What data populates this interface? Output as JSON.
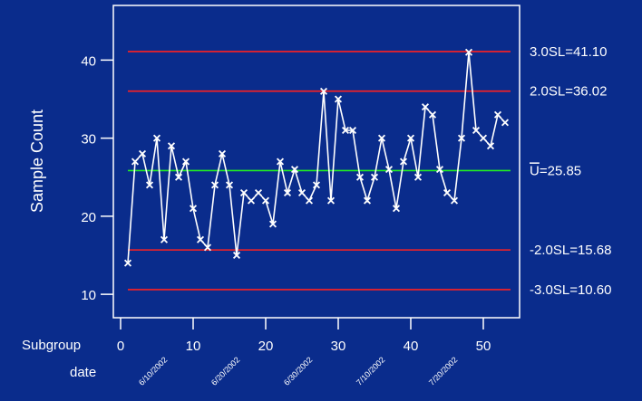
{
  "chart_data": {
    "type": "line",
    "title": "",
    "ylabel": "Sample Count",
    "xlabel": "Subgroup",
    "date_row_label": "date",
    "xlim": [
      -1,
      55
    ],
    "ylim": [
      7,
      47
    ],
    "x_ticks": [
      0,
      10,
      20,
      30,
      40,
      50
    ],
    "y_ticks": [
      10,
      20,
      30,
      40
    ],
    "date_ticks": [
      {
        "x": 6,
        "label": "6/10/2002"
      },
      {
        "x": 16,
        "label": "6/20/2002"
      },
      {
        "x": 26,
        "label": "6/30/2002"
      },
      {
        "x": 36,
        "label": "7/10/2002"
      },
      {
        "x": 46,
        "label": "7/20/2002"
      }
    ],
    "series": [
      {
        "x": [
          1,
          2,
          3,
          4,
          5,
          6,
          7,
          8,
          9,
          10,
          11,
          12,
          13,
          14,
          15,
          16,
          17,
          18,
          19,
          20,
          21,
          22,
          23,
          24,
          25,
          26,
          27,
          28,
          29,
          30,
          31,
          32,
          33,
          34,
          35,
          36,
          37,
          38,
          39,
          40,
          41,
          42,
          43,
          44,
          45,
          46,
          47,
          48,
          49,
          50,
          51,
          52,
          53
        ],
        "values": [
          14,
          27,
          28,
          24,
          30,
          17,
          29,
          25,
          27,
          21,
          17,
          16,
          24,
          28,
          24,
          15,
          23,
          22,
          23,
          22,
          19,
          27,
          23,
          26,
          23,
          22,
          24,
          36,
          22,
          35,
          31,
          31,
          25,
          22,
          25,
          30,
          26,
          21,
          27,
          30,
          25,
          34,
          33,
          26,
          23,
          22,
          30,
          41,
          31,
          30,
          29,
          33,
          32
        ]
      }
    ],
    "control_lines": [
      {
        "label": "3.0SL=41.10",
        "value": 41.1,
        "color": "#ff2020"
      },
      {
        "label": "2.0SL=36.02",
        "value": 36.02,
        "color": "#ff2020"
      },
      {
        "label": "U=25.85",
        "value": 25.85,
        "color": "#22ee22",
        "overline_first": true
      },
      {
        "label": "-2.0SL=15.68",
        "value": 15.68,
        "color": "#ff2020"
      },
      {
        "label": "-3.0SL=10.60",
        "value": 10.6,
        "color": "#ff2020"
      }
    ],
    "colors": {
      "background": "#0a2c8c",
      "axes": "#ffffff",
      "series": "#ffffff"
    },
    "grid": false,
    "legend": "none"
  }
}
